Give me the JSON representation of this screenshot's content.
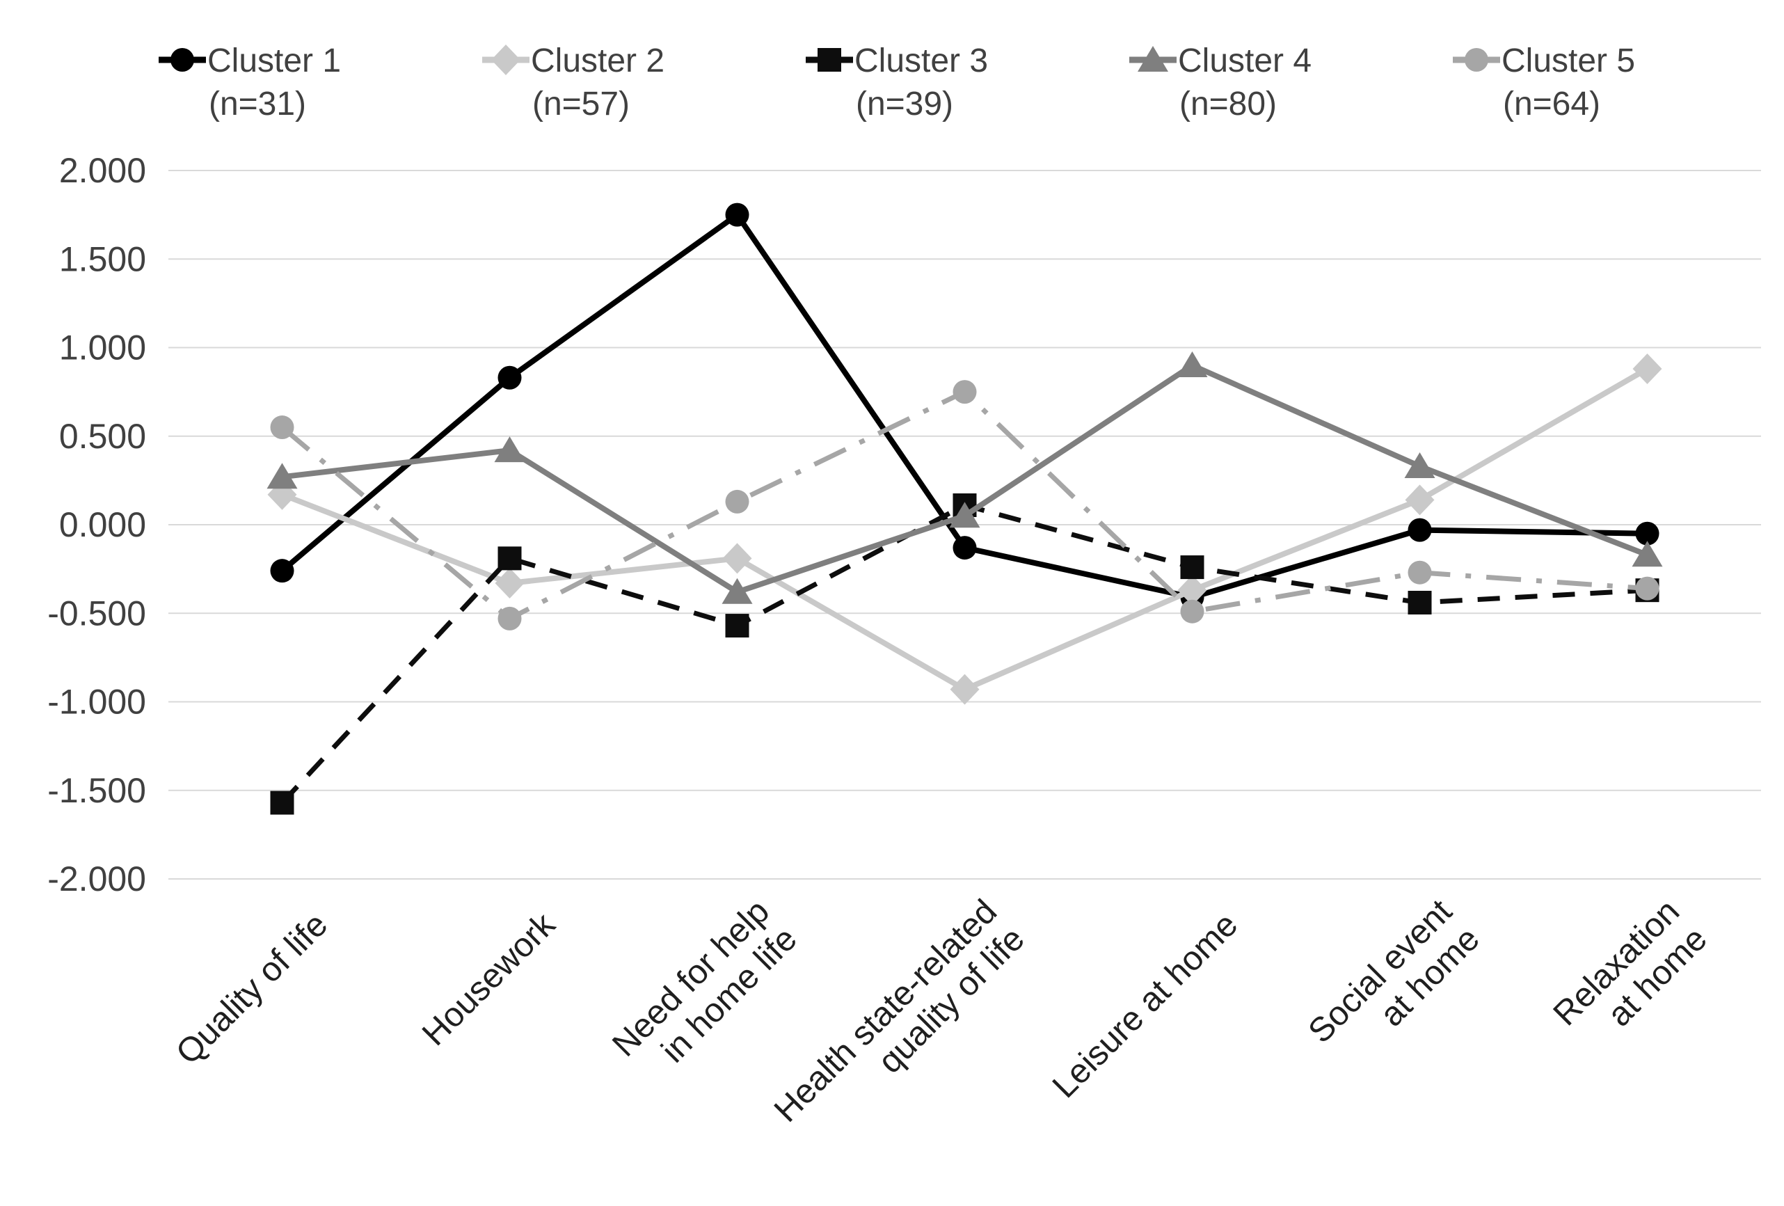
{
  "colors": {
    "background": "#ffffff",
    "grid": "#d9d9d9",
    "tick_text": "#404040",
    "legend_text": "#404040",
    "xlabel_text": "#1f1f1f"
  },
  "chart_data": {
    "type": "line",
    "title": "",
    "xlabel": "",
    "ylabel": "",
    "grid": "horizontal",
    "legend_position": "top",
    "ylim": [
      -2.0,
      2.0
    ],
    "y_tick_step": 0.5,
    "y_ticks": [
      "2.000",
      "1.500",
      "1.000",
      "0.500",
      "0.000",
      "-0.500",
      "-1.000",
      "-1.500",
      "-2.000"
    ],
    "categories": [
      "Quality of life",
      "Housework",
      "Need for help in home life",
      "Health state-related quality of life",
      "Leisure at home",
      "Social event at home",
      "Relaxation at home"
    ],
    "category_label_lines": [
      [
        "Quality of life"
      ],
      [
        "Housework"
      ],
      [
        "Need for help",
        "in home life"
      ],
      [
        "Health state-related",
        "quality of life"
      ],
      [
        "Leisure at home"
      ],
      [
        "Social event",
        "at home"
      ],
      [
        "Relaxation",
        "at home"
      ]
    ],
    "series": [
      {
        "name": "Cluster 1",
        "n_label": "(n=31)",
        "marker": "circle",
        "line_style": "solid",
        "color": "#000000",
        "values": [
          -0.26,
          0.83,
          1.75,
          -0.13,
          -0.41,
          -0.03,
          -0.05
        ]
      },
      {
        "name": "Cluster 2",
        "n_label": "(n=57)",
        "marker": "diamond",
        "line_style": "solid",
        "color": "#c9c9c9",
        "values": [
          0.17,
          -0.33,
          -0.19,
          -0.93,
          -0.37,
          0.14,
          0.88
        ]
      },
      {
        "name": "Cluster 3",
        "n_label": "(n=39)",
        "marker": "square",
        "line_style": "dashed",
        "color": "#0d0d0d",
        "values": [
          -1.57,
          -0.19,
          -0.57,
          0.11,
          -0.24,
          -0.44,
          -0.37
        ]
      },
      {
        "name": "Cluster 4",
        "n_label": "(n=80)",
        "marker": "triangle",
        "line_style": "solid",
        "color": "#7f7f7f",
        "values": [
          0.27,
          0.42,
          -0.38,
          0.05,
          0.9,
          0.33,
          -0.17
        ]
      },
      {
        "name": "Cluster 5",
        "n_label": "(n=64)",
        "marker": "circle",
        "line_style": "dashdot",
        "color": "#a6a6a6",
        "values": [
          0.55,
          -0.53,
          0.13,
          0.75,
          -0.49,
          -0.27,
          -0.36
        ]
      }
    ]
  }
}
